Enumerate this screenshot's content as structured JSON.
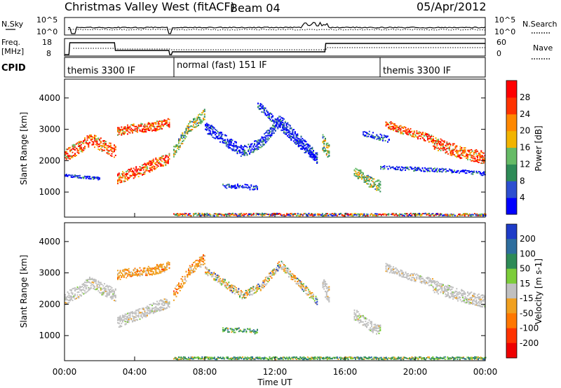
{
  "header": {
    "title": "Christmas Valley West (fitACF)",
    "beam": "Beam 04",
    "date": "05/Apr/2012"
  },
  "noise_panel": {
    "left_label": "N.Sky",
    "right_label": "N.Search",
    "left_ticks": [
      "10^5",
      "10^0"
    ],
    "right_ticks": [
      "10^5",
      "10^0"
    ]
  },
  "freq_panel": {
    "left_label_1": "Freq.",
    "left_label_2": "[MHz]",
    "right_label": "Nave",
    "left_ticks": [
      "18",
      "8"
    ],
    "right_ticks": [
      "60",
      "0"
    ]
  },
  "cpid_panel": {
    "label": "CPID",
    "segments": [
      {
        "name": "themis 3300 IF",
        "start_hour": 0.0
      },
      {
        "name": "normal (fast) 151 IF",
        "start_hour": 6.0
      },
      {
        "name": "themis 3300 IF",
        "start_hour": 18.0
      }
    ]
  },
  "chart_data": [
    {
      "type": "heatmap",
      "name": "power",
      "ylabel": "Slant Range [km]",
      "xlim": [
        0,
        24
      ],
      "ylim": [
        200,
        4600
      ],
      "y_ticks": [
        1000,
        2000,
        3000,
        4000
      ],
      "colorbar": {
        "label": "Power [dB]",
        "ticks": [
          "4",
          "8",
          "12",
          "16",
          "20",
          "24",
          "28"
        ],
        "colors": [
          "#0000ff",
          "#2d4fd0",
          "#2e8b57",
          "#66bb66",
          "#f2b400",
          "#ff8800",
          "#ff3300",
          "#ff0000"
        ]
      },
      "echo_bands": [
        {
          "t0": 0.0,
          "t1": 2.9,
          "r": [
            2200,
            2400,
            2700,
            2500,
            2300
          ],
          "w": 400,
          "level": "strong"
        },
        {
          "t0": 0.0,
          "t1": 2.0,
          "r": [
            1550,
            1500,
            1450
          ],
          "w": 80,
          "level": "weak"
        },
        {
          "t0": 3.0,
          "t1": 6.0,
          "r": [
            2950,
            3050,
            3100,
            3250
          ],
          "w": 300,
          "level": "strong"
        },
        {
          "t0": 3.0,
          "t1": 6.0,
          "r": [
            1450,
            1600,
            1750,
            1950,
            2100
          ],
          "w": 350,
          "level": "strong"
        },
        {
          "t0": 6.2,
          "t1": 8.0,
          "r": [
            2300,
            2700,
            3100,
            3300,
            3500
          ],
          "w": 350,
          "level": "moderate"
        },
        {
          "t0": 8.0,
          "t1": 14.4,
          "r": [
            3100,
            2700,
            2300,
            2600,
            3300,
            2700,
            2100
          ],
          "w": 350,
          "level": "weak"
        },
        {
          "t0": 11.0,
          "t1": 14.4,
          "r": [
            3800,
            3200,
            2600,
            2000
          ],
          "w": 250,
          "level": "weak"
        },
        {
          "t0": 9.0,
          "t1": 11.0,
          "r": [
            1200,
            1200,
            1150
          ],
          "w": 150,
          "level": "weak"
        },
        {
          "t0": 14.7,
          "t1": 15.1,
          "r": [
            2600,
            2300
          ],
          "w": 500,
          "level": "moderate"
        },
        {
          "t0": 16.5,
          "t1": 18.0,
          "r": [
            1700,
            1500,
            1300,
            1200
          ],
          "w": 350,
          "level": "moderate"
        },
        {
          "t0": 17.0,
          "t1": 18.5,
          "r": [
            2900,
            2800,
            2700
          ],
          "w": 200,
          "level": "weak"
        },
        {
          "t0": 18.3,
          "t1": 21.0,
          "r": [
            3200,
            3000,
            2850,
            2700
          ],
          "w": 250,
          "level": "strong"
        },
        {
          "t0": 21.0,
          "t1": 24.0,
          "r": [
            2600,
            2300,
            2100
          ],
          "w": 400,
          "level": "strong"
        },
        {
          "t0": 18.0,
          "t1": 24.0,
          "r": [
            1800,
            1750,
            1700,
            1600
          ],
          "w": 120,
          "level": "weak"
        },
        {
          "t0": 6.2,
          "t1": 24.0,
          "r": [
            300,
            300
          ],
          "w": 80,
          "level": "noise"
        }
      ]
    },
    {
      "type": "heatmap",
      "name": "velocity",
      "ylabel": "Slant Range [km]",
      "xlabel": "Time UT",
      "xlim": [
        0,
        24
      ],
      "ylim": [
        200,
        4600
      ],
      "x_ticks": [
        "00:00",
        "04:00",
        "08:00",
        "12:00",
        "16:00",
        "20:00",
        "00:00"
      ],
      "y_ticks": [
        1000,
        2000,
        3000,
        4000
      ],
      "colorbar": {
        "label": "Velocity [m s-1]",
        "ticks": [
          "200",
          "100",
          "50",
          "15",
          "-15",
          "-50",
          "-100",
          "-200"
        ],
        "colors": [
          "#1e3cc8",
          "#2e6e9e",
          "#2e8b57",
          "#7ccd3a",
          "#c0c0c0",
          "#f0a020",
          "#ff7700",
          "#ff3300",
          "#ee0000"
        ]
      },
      "echo_bands": [
        {
          "t0": 0.0,
          "t1": 2.9,
          "r": [
            2200,
            2400,
            2700,
            2500,
            2300
          ],
          "w": 400,
          "level": "ground"
        },
        {
          "t0": 3.0,
          "t1": 6.0,
          "r": [
            2950,
            3050,
            3100,
            3250
          ],
          "w": 300,
          "level": "away"
        },
        {
          "t0": 3.0,
          "t1": 6.0,
          "r": [
            1450,
            1600,
            1750,
            1950,
            2100
          ],
          "w": 350,
          "level": "ground"
        },
        {
          "t0": 6.2,
          "t1": 8.0,
          "r": [
            2300,
            2700,
            3100,
            3300,
            3500
          ],
          "w": 350,
          "level": "away"
        },
        {
          "t0": 8.0,
          "t1": 14.4,
          "r": [
            3100,
            2700,
            2300,
            2600,
            3300,
            2700,
            2100
          ],
          "w": 250,
          "level": "mixed"
        },
        {
          "t0": 9.0,
          "t1": 11.0,
          "r": [
            1200,
            1200,
            1150
          ],
          "w": 150,
          "level": "toward"
        },
        {
          "t0": 14.7,
          "t1": 15.1,
          "r": [
            2600,
            2300
          ],
          "w": 500,
          "level": "ground"
        },
        {
          "t0": 16.5,
          "t1": 18.0,
          "r": [
            1700,
            1500,
            1300,
            1200
          ],
          "w": 350,
          "level": "ground"
        },
        {
          "t0": 18.3,
          "t1": 21.0,
          "r": [
            3200,
            3000,
            2850,
            2700
          ],
          "w": 250,
          "level": "ground"
        },
        {
          "t0": 21.0,
          "t1": 24.0,
          "r": [
            2600,
            2300,
            2100
          ],
          "w": 400,
          "level": "ground"
        },
        {
          "t0": 6.2,
          "t1": 24.0,
          "r": [
            300,
            300
          ],
          "w": 80,
          "level": "toward"
        }
      ]
    }
  ]
}
